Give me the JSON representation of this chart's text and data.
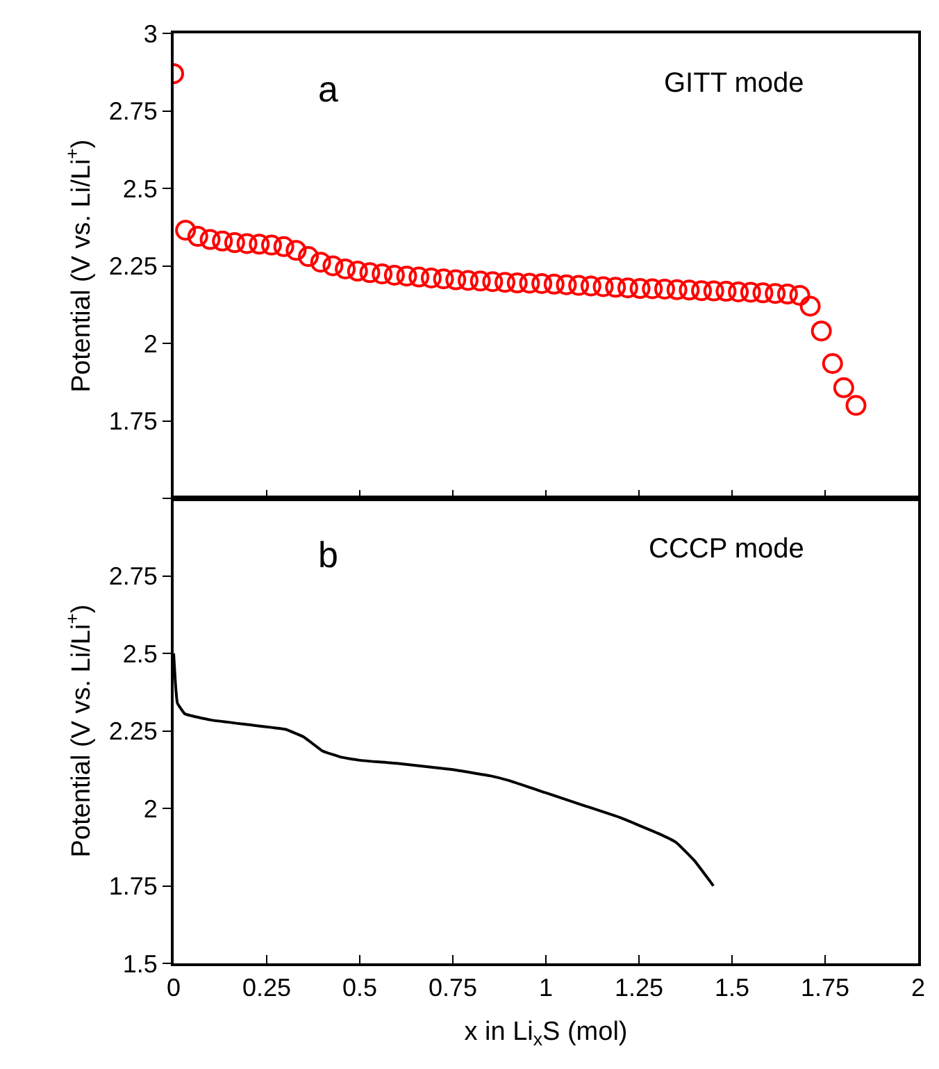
{
  "chart_data": [
    {
      "type": "scatter",
      "annotations": [
        "a",
        "GITT mode"
      ],
      "ylabel": "Potential (V vs. Li/Li$^{+}$)",
      "xlim": [
        0,
        2
      ],
      "xticks": [
        0,
        0.25,
        0.5,
        0.75,
        1,
        1.25,
        1.5,
        1.75,
        2
      ],
      "ylim": [
        1.5,
        3
      ],
      "yticks": [
        {
          "value": 1.5,
          "label": null
        },
        1.75,
        2,
        2.25,
        2.5,
        2.75,
        3
      ],
      "tick_labels": "y",
      "marker": "circle",
      "grid": false,
      "series": [
        {
          "color": "#ff0000",
          "x": [
            0,
            0.032,
            0.065,
            0.098,
            0.131,
            0.164,
            0.197,
            0.23,
            0.263,
            0.296,
            0.329,
            0.362,
            0.395,
            0.428,
            0.461,
            0.494,
            0.527,
            0.56,
            0.593,
            0.626,
            0.659,
            0.692,
            0.725,
            0.758,
            0.791,
            0.824,
            0.857,
            0.89,
            0.923,
            0.956,
            0.989,
            1.022,
            1.055,
            1.088,
            1.121,
            1.154,
            1.187,
            1.22,
            1.253,
            1.286,
            1.319,
            1.352,
            1.385,
            1.418,
            1.451,
            1.484,
            1.517,
            1.55,
            1.583,
            1.616,
            1.649,
            1.682,
            1.71,
            1.74,
            1.77,
            1.8,
            1.833
          ],
          "values": [
            2.87,
            2.365,
            2.345,
            2.335,
            2.33,
            2.325,
            2.322,
            2.32,
            2.317,
            2.312,
            2.3,
            2.28,
            2.262,
            2.25,
            2.24,
            2.233,
            2.228,
            2.224,
            2.22,
            2.217,
            2.214,
            2.211,
            2.208,
            2.205,
            2.203,
            2.201,
            2.199,
            2.197,
            2.195,
            2.194,
            2.193,
            2.191,
            2.189,
            2.187,
            2.185,
            2.183,
            2.181,
            2.179,
            2.177,
            2.176,
            2.175,
            2.173,
            2.172,
            2.17,
            2.169,
            2.168,
            2.166,
            2.165,
            2.163,
            2.161,
            2.159,
            2.155,
            2.12,
            2.04,
            1.935,
            1.857,
            1.8
          ]
        }
      ]
    },
    {
      "type": "line",
      "annotations": [
        "b",
        "CCCP mode"
      ],
      "xlabel": "x in Li$_{x}$S (mol)",
      "ylabel": "Potential (V vs. Li/Li$^{+}$)",
      "xlim": [
        0,
        2
      ],
      "xticks": [
        0,
        0.25,
        0.5,
        0.75,
        1,
        1.25,
        1.5,
        1.75,
        2
      ],
      "ylim": [
        1.5,
        3
      ],
      "yticks": [
        1.5,
        1.75,
        2,
        2.25,
        2.5,
        2.75
      ],
      "marker": "none",
      "line_style": "solid",
      "grid": false,
      "series": [
        {
          "color": "#000000",
          "x": [
            0,
            0.005,
            0.01,
            0.03,
            0.1,
            0.2,
            0.3,
            0.35,
            0.4,
            0.45,
            0.5,
            0.6,
            0.75,
            0.85,
            0.9,
            1.0,
            1.1,
            1.2,
            1.3,
            1.35,
            1.4,
            1.45
          ],
          "values": [
            2.5,
            2.4,
            2.34,
            2.305,
            2.285,
            2.27,
            2.255,
            2.23,
            2.185,
            2.165,
            2.155,
            2.145,
            2.125,
            2.105,
            2.09,
            2.05,
            2.01,
            1.97,
            1.92,
            1.89,
            1.83,
            1.75
          ]
        }
      ]
    }
  ]
}
